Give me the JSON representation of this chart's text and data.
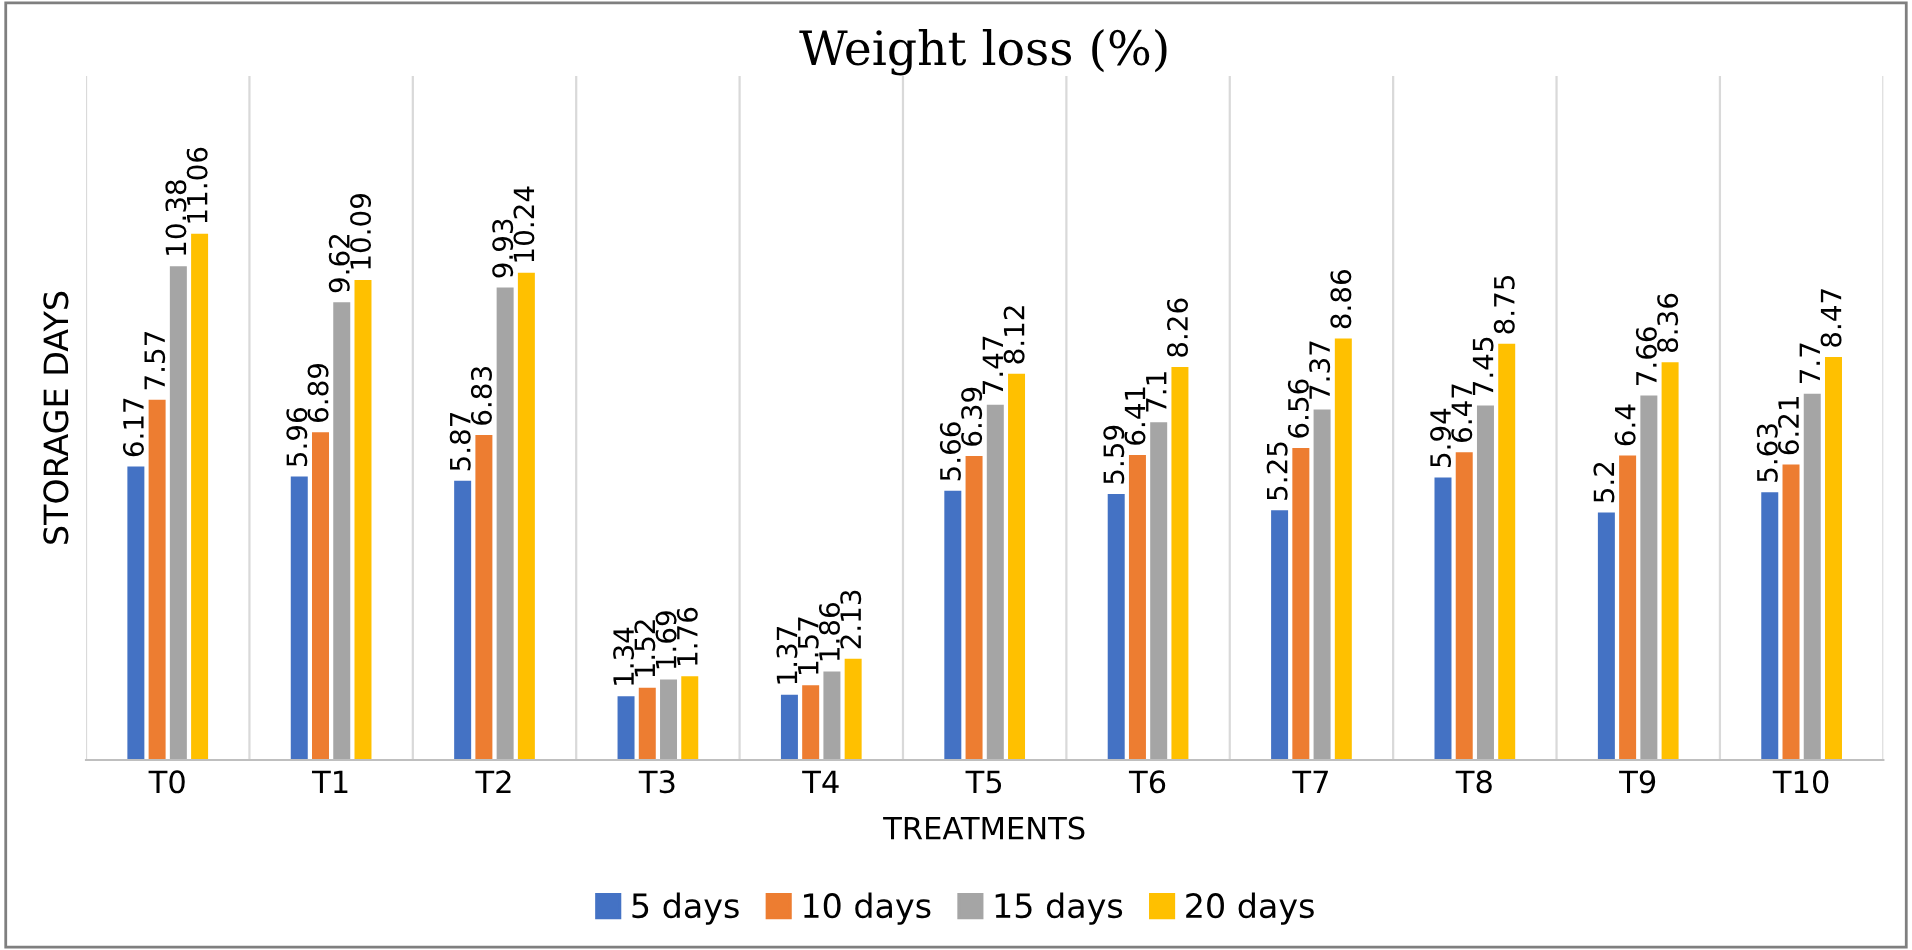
{
  "chart_data": {
    "type": "bar",
    "title": "Weight loss (%)",
    "xlabel": "TREATMENTS",
    "ylabel": "STORAGE DAYS",
    "categories": [
      "T0",
      "T1",
      "T2",
      "T3",
      "T4",
      "T5",
      "T6",
      "T7",
      "T8",
      "T9",
      "T10"
    ],
    "series": [
      {
        "name": "5 days",
        "color": "#4472c4",
        "values": [
          6.17,
          5.96,
          5.87,
          1.34,
          1.37,
          5.66,
          5.59,
          5.25,
          5.94,
          5.2,
          5.63
        ]
      },
      {
        "name": "10 days",
        "color": "#ed7d31",
        "values": [
          7.57,
          6.89,
          6.83,
          1.52,
          1.57,
          6.39,
          6.41,
          6.56,
          6.47,
          6.4,
          6.21
        ]
      },
      {
        "name": "15 days",
        "color": "#a5a5a5",
        "values": [
          10.38,
          9.62,
          9.93,
          1.69,
          1.86,
          7.47,
          7.1,
          7.37,
          7.45,
          7.66,
          7.7
        ]
      },
      {
        "name": "20 days",
        "color": "#ffc000",
        "values": [
          11.06,
          10.09,
          10.24,
          1.76,
          2.13,
          8.12,
          8.26,
          8.86,
          8.75,
          8.36,
          8.47
        ]
      }
    ],
    "data_labels": true,
    "grid": "x",
    "legend": "bottom",
    "tick_labels": "x"
  }
}
